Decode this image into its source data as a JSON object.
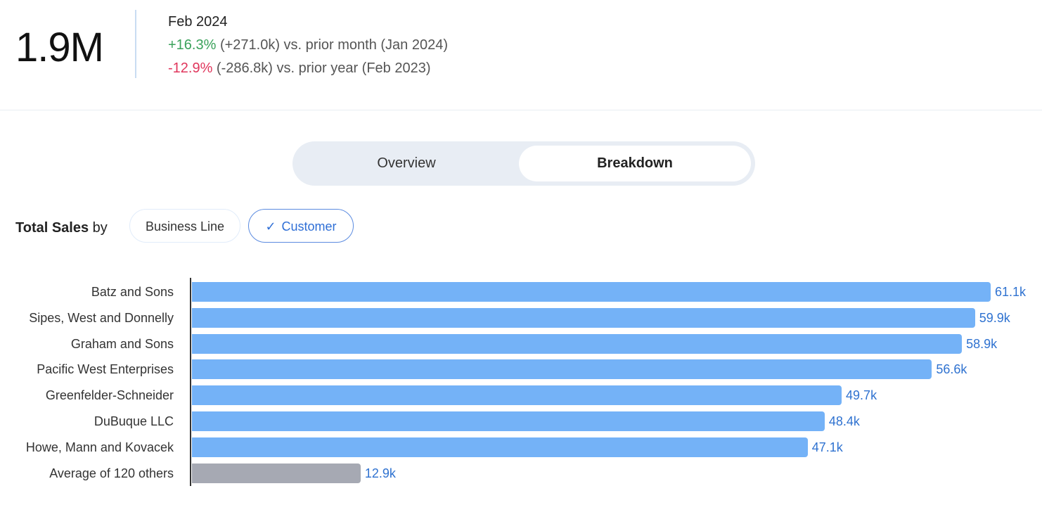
{
  "kpi": {
    "value": "1.9M",
    "period": "Feb 2024",
    "month_change_pct": "+16.3%",
    "month_change_text": " (+271.0k) vs. prior month (Jan 2024)",
    "year_change_pct": "-12.9%",
    "year_change_text": " (-286.8k) vs. prior year (Feb 2023)"
  },
  "tabs": [
    {
      "label": "Overview",
      "active": false
    },
    {
      "label": "Breakdown",
      "active": true
    }
  ],
  "breakdown": {
    "title_bold": "Total Sales",
    "title_rest": " by",
    "chips": [
      {
        "label": "Business Line",
        "selected": false
      },
      {
        "label": "Customer",
        "selected": true,
        "icon": "check-icon"
      }
    ]
  },
  "colors": {
    "bar": "#74b2f7",
    "other_bar": "#a6a9b3",
    "value_label": "#2f72d0",
    "positive": "#3aa15a",
    "negative": "#e0365c"
  },
  "chart_data": {
    "type": "bar",
    "orientation": "horizontal",
    "categories": [
      "Batz and Sons",
      "Sipes, West and Donnelly",
      "Graham and Sons",
      "Pacific West Enterprises",
      "Greenfelder-Schneider",
      "DuBuque LLC",
      "Howe, Mann and Kovacek",
      "Average of 120 others"
    ],
    "values": [
      61.1,
      59.9,
      58.9,
      56.6,
      49.7,
      48.4,
      47.1,
      12.9
    ],
    "value_labels": [
      "61.1k",
      "59.9k",
      "58.9k",
      "56.6k",
      "49.7k",
      "48.4k",
      "47.1k",
      "12.9k"
    ],
    "unit": "k",
    "grid": false
  }
}
